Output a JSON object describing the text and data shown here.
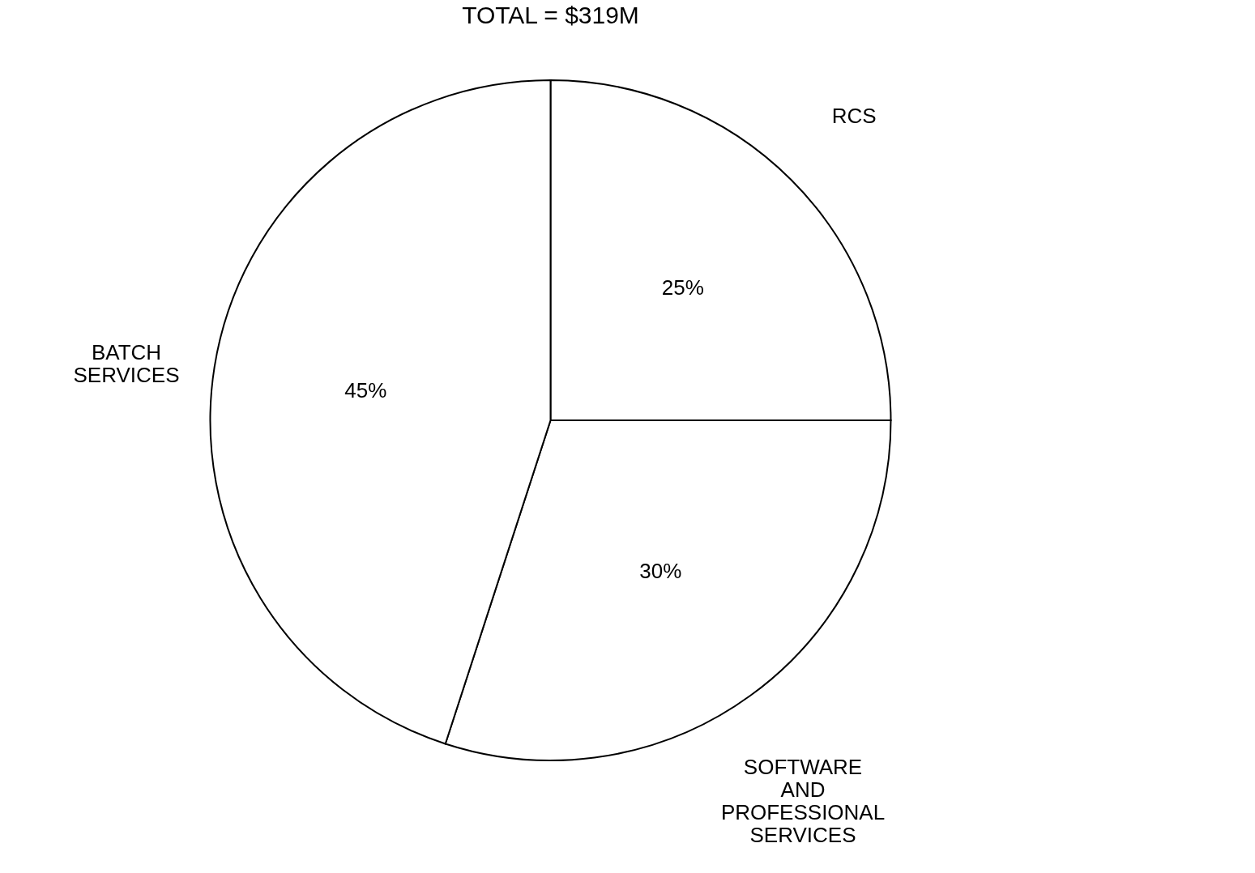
{
  "chart_data": {
    "type": "pie",
    "title": "TOTAL = $319M",
    "categories": [
      "RCS",
      "SOFTWARE\nAND\nPROFESSIONAL\nSERVICES",
      "BATCH\nSERVICES"
    ],
    "values": [
      25,
      30,
      45
    ],
    "colors": [
      "#ffffff",
      "#ffffff",
      "#ffffff"
    ],
    "value_labels": [
      "25%",
      "30%",
      "45%"
    ],
    "legend": false
  }
}
